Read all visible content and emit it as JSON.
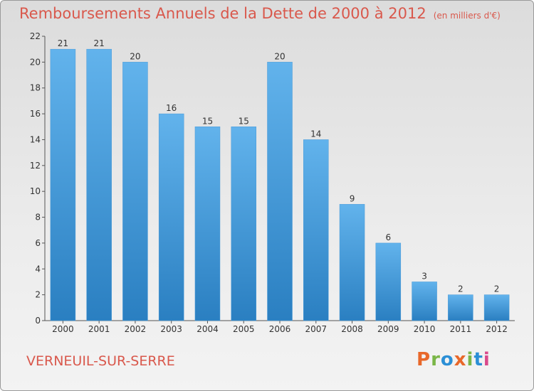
{
  "header": {
    "title": "Remboursements Annuels de la Dette de 2000 à 2012",
    "subtitle": "(en milliers d'€)"
  },
  "footer": {
    "town": "VERNEUIL-SUR-SERRE",
    "logo_text": "Proxiti"
  },
  "colors": {
    "title": "#d9584c",
    "bar_light": "#62b3ec",
    "bar_dark": "#2a7fc1",
    "logo": [
      "#e8682a",
      "#7ab648",
      "#2b8fd6",
      "#e8682a",
      "#7ab648",
      "#2b8fd6",
      "#d94a8c"
    ]
  },
  "chart_data": {
    "type": "bar",
    "title": "Remboursements Annuels de la Dette de 2000 à 2012",
    "subtitle": "(en milliers d'€)",
    "xlabel": "",
    "ylabel": "",
    "categories": [
      "2000",
      "2001",
      "2002",
      "2003",
      "2004",
      "2005",
      "2006",
      "2007",
      "2008",
      "2009",
      "2010",
      "2011",
      "2012"
    ],
    "values": [
      21,
      21,
      20,
      16,
      15,
      15,
      20,
      14,
      9,
      6,
      3,
      2,
      2
    ],
    "data_labels": [
      "21",
      "21",
      "20",
      "16",
      "15",
      "15",
      "20",
      "14",
      "9",
      "6",
      "3",
      "2",
      "2"
    ],
    "ylim": [
      0,
      22
    ],
    "yticks": [
      0,
      2,
      4,
      6,
      8,
      10,
      12,
      14,
      16,
      18,
      20,
      22
    ],
    "ytick_labels": [
      "0",
      "2",
      "4",
      "6",
      "8",
      "10",
      "12",
      "14",
      "16",
      "18",
      "20",
      "22"
    ],
    "grid": false,
    "legend": "none"
  }
}
